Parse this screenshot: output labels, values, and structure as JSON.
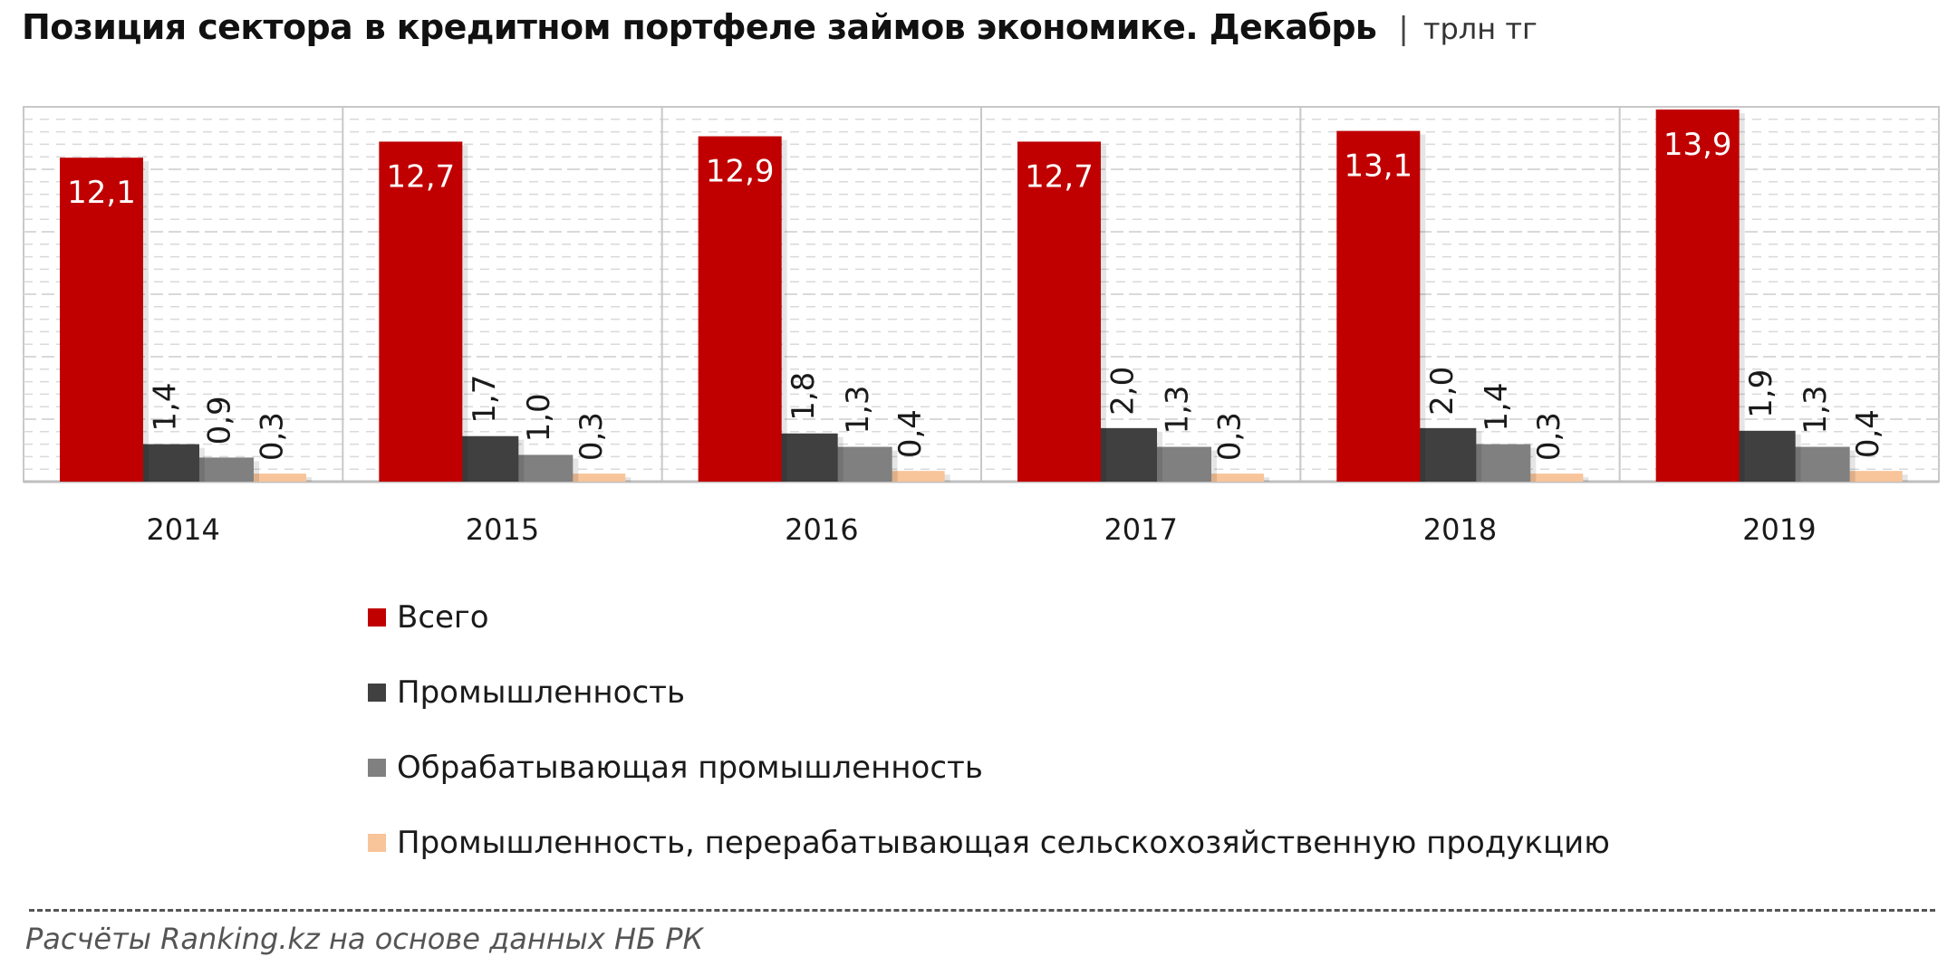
{
  "title": "Позиция  сектора в кредитном портфеле займов экономике. Декабрь",
  "separator": "|",
  "unit": "трлн тг",
  "source": "Расчёты Ranking.kz на основе данных  НБ РК",
  "colors": {
    "total": "#c00000",
    "industry": "#404040",
    "manufacturing": "#808080",
    "agro_processing": "#f8c49a",
    "grid": "#d9d9d9",
    "axis": "#bfbfbf",
    "panel_border": "#c8c8c8"
  },
  "chart_data": {
    "type": "bar",
    "categories": [
      "2014",
      "2015",
      "2016",
      "2017",
      "2018",
      "2019"
    ],
    "series": [
      {
        "name": "Всего",
        "values": [
          12.1,
          12.7,
          12.9,
          12.7,
          13.1,
          13.9
        ],
        "labels": [
          "12,1",
          "12,7",
          "12,9",
          "12,7",
          "13,1",
          "13,9"
        ]
      },
      {
        "name": "Промышленность",
        "values": [
          1.4,
          1.7,
          1.8,
          2.0,
          2.0,
          1.9
        ],
        "labels": [
          "1,4",
          "1,7",
          "1,8",
          "2,0",
          "2,0",
          "1,9"
        ]
      },
      {
        "name": "Обрабатывающая промышленность",
        "values": [
          0.9,
          1.0,
          1.3,
          1.3,
          1.4,
          1.3
        ],
        "labels": [
          "0,9",
          "1,0",
          "1,3",
          "1,3",
          "1,4",
          "1,3"
        ]
      },
      {
        "name": "Промышленность, перерабатывающая сельскохозяйственную продукцию",
        "values": [
          0.3,
          0.3,
          0.4,
          0.3,
          0.3,
          0.4
        ],
        "labels": [
          "0,3",
          "0,3",
          "0,4",
          "0,3",
          "0,3",
          "0,4"
        ]
      }
    ],
    "ylim": [
      0,
      14
    ],
    "grid": true,
    "legend_position": "bottom"
  }
}
